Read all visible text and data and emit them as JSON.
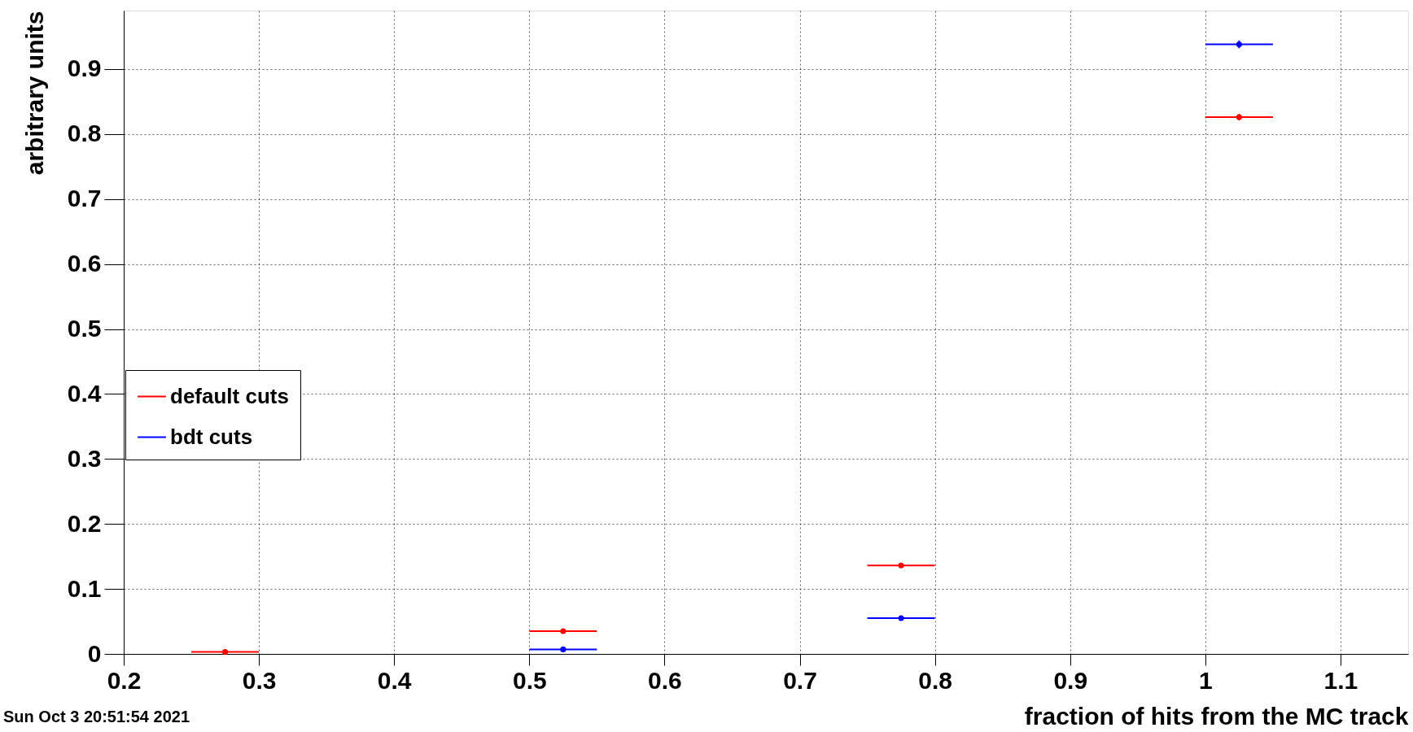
{
  "chart_data": {
    "type": "scatter",
    "xlabel": "fraction of hits from the MC track",
    "ylabel": "arbitrary units",
    "x": [
      0.275,
      0.525,
      0.775,
      1.025
    ],
    "series": [
      {
        "name": "default cuts",
        "color": "#ff0000",
        "values": [
          0.003,
          0.035,
          0.136,
          0.826
        ],
        "xerrors": [
          0.025,
          0.025,
          0.025,
          0.025
        ],
        "errors": [
          0.001,
          0.002,
          0.003,
          0.005
        ]
      },
      {
        "name": "bdt cuts",
        "color": "#0000ff",
        "values": [
          null,
          0.007,
          0.055,
          0.938
        ],
        "xerrors": [
          null,
          0.025,
          0.025,
          0.025
        ],
        "errors": [
          null,
          0.002,
          0.003,
          0.006
        ]
      }
    ],
    "xlim": [
      0.2,
      1.15
    ],
    "ylim": [
      0,
      0.99
    ],
    "xticks": [
      0.2,
      0.3,
      0.4,
      0.5,
      0.6,
      0.7,
      0.8,
      0.9,
      1,
      1.1
    ],
    "yticks": [
      0,
      0.1,
      0.2,
      0.3,
      0.4,
      0.5,
      0.6,
      0.7,
      0.8,
      0.9
    ],
    "grid": true,
    "legend": "left",
    "marker": "circle",
    "annotations": [
      "Sun Oct 3 20:51:54 2021"
    ]
  }
}
